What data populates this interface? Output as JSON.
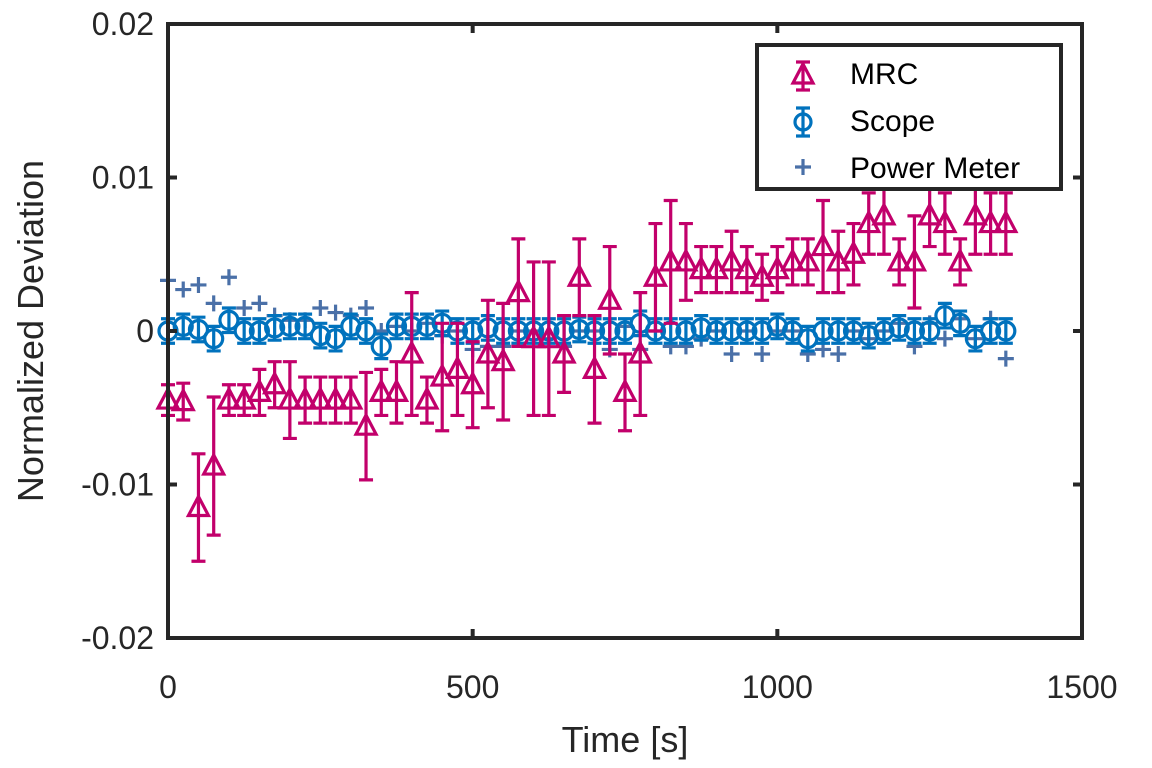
{
  "chart_data": {
    "type": "scatter",
    "title": "",
    "xlabel": "Time [s]",
    "ylabel": "Normalized Deviation",
    "xlim": [
      0,
      1500
    ],
    "ylim": [
      -0.02,
      0.02
    ],
    "xticks": [
      0,
      500,
      1000,
      1500
    ],
    "xtick_labels": [
      "0",
      "500",
      "1000",
      "1500"
    ],
    "yticks": [
      -0.02,
      -0.01,
      0,
      0.01,
      0.02
    ],
    "ytick_labels": [
      "-0.02",
      "-0.01",
      "0",
      "0.01",
      "0.02"
    ],
    "legend_position": "top-right",
    "grid": false,
    "series": [
      {
        "name": "MRC",
        "marker": "triangle",
        "color": "#C2006B",
        "x": [
          0,
          25,
          50,
          75,
          100,
          125,
          150,
          175,
          200,
          225,
          250,
          275,
          300,
          325,
          350,
          375,
          400,
          425,
          450,
          475,
          500,
          525,
          550,
          575,
          600,
          625,
          650,
          675,
          700,
          725,
          750,
          775,
          800,
          825,
          850,
          875,
          900,
          925,
          950,
          975,
          1000,
          1025,
          1050,
          1075,
          1100,
          1125,
          1150,
          1175,
          1200,
          1225,
          1250,
          1275,
          1300,
          1325,
          1350,
          1375
        ],
        "y": [
          -0.0045,
          -0.0046,
          -0.0115,
          -0.0088,
          -0.0045,
          -0.0045,
          -0.004,
          -0.0035,
          -0.0045,
          -0.0045,
          -0.0045,
          -0.0045,
          -0.0045,
          -0.0062,
          -0.004,
          -0.004,
          -0.0015,
          -0.0045,
          -0.003,
          -0.0025,
          -0.0035,
          -0.0015,
          -0.002,
          0.0025,
          -0.0005,
          -0.0005,
          -0.0015,
          0.0035,
          -0.0025,
          0.002,
          -0.004,
          -0.0015,
          0.0035,
          0.0045,
          0.0045,
          0.004,
          0.004,
          0.0045,
          0.004,
          0.0035,
          0.004,
          0.0045,
          0.0045,
          0.0055,
          0.0045,
          0.005,
          0.007,
          0.0075,
          0.0045,
          0.0045,
          0.0075,
          0.007,
          0.0045,
          0.0075,
          0.007,
          0.007
        ],
        "err": [
          0.001,
          0.0012,
          0.0035,
          0.0045,
          0.001,
          0.001,
          0.0015,
          0.0015,
          0.0025,
          0.0015,
          0.0015,
          0.0015,
          0.0015,
          0.0035,
          0.0015,
          0.002,
          0.004,
          0.0015,
          0.0035,
          0.003,
          0.0028,
          0.0035,
          0.0038,
          0.0035,
          0.005,
          0.005,
          0.0025,
          0.0025,
          0.0035,
          0.0035,
          0.0025,
          0.004,
          0.0035,
          0.004,
          0.0025,
          0.0015,
          0.0015,
          0.002,
          0.0015,
          0.0015,
          0.0015,
          0.0015,
          0.0015,
          0.003,
          0.002,
          0.002,
          0.002,
          0.0025,
          0.0015,
          0.003,
          0.002,
          0.002,
          0.0015,
          0.0025,
          0.002,
          0.002
        ]
      },
      {
        "name": "Scope",
        "marker": "circle",
        "color": "#0072BD",
        "x": [
          0,
          25,
          50,
          75,
          100,
          125,
          150,
          175,
          200,
          225,
          250,
          275,
          300,
          325,
          350,
          375,
          400,
          425,
          450,
          475,
          500,
          525,
          550,
          575,
          600,
          625,
          650,
          675,
          700,
          725,
          750,
          775,
          800,
          825,
          850,
          875,
          900,
          925,
          950,
          975,
          1000,
          1025,
          1050,
          1075,
          1100,
          1125,
          1150,
          1175,
          1200,
          1225,
          1250,
          1275,
          1300,
          1325,
          1350,
          1375
        ],
        "y": [
          0.0,
          0.0003,
          0.0001,
          -0.0005,
          0.0007,
          0.0,
          0.0,
          0.0002,
          0.0003,
          0.0003,
          -0.0003,
          -0.0005,
          0.0003,
          0.0,
          -0.001,
          0.0003,
          0.0003,
          0.0003,
          0.0005,
          0.0,
          0.0,
          0.0002,
          0.0,
          0.0,
          0.0,
          0.0,
          0.0,
          0.0001,
          0.0,
          0.0,
          0.0,
          0.0005,
          0.0,
          0.0,
          0.0,
          0.0002,
          0.0,
          0.0,
          0.0,
          0.0,
          0.0003,
          0.0,
          -0.0005,
          0.0,
          0.0,
          0.0,
          -0.0003,
          0.0,
          0.0002,
          0.0,
          0.0,
          0.001,
          0.0005,
          -0.0005,
          0.0,
          0.0
        ],
        "err": [
          0.0008,
          0.0008,
          0.0008,
          0.0008,
          0.0008,
          0.0008,
          0.0008,
          0.0008,
          0.0008,
          0.0008,
          0.0008,
          0.0008,
          0.0008,
          0.0008,
          0.0008,
          0.0008,
          0.0008,
          0.0008,
          0.0008,
          0.0008,
          0.0008,
          0.0008,
          0.0008,
          0.0008,
          0.0008,
          0.0008,
          0.0008,
          0.0008,
          0.0008,
          0.0008,
          0.0008,
          0.0008,
          0.0008,
          0.0008,
          0.0008,
          0.0008,
          0.0008,
          0.0008,
          0.0008,
          0.0008,
          0.0008,
          0.0008,
          0.0008,
          0.0008,
          0.0008,
          0.0008,
          0.0008,
          0.0008,
          0.0008,
          0.0008,
          0.0008,
          0.0008,
          0.0008,
          0.0008,
          0.0008,
          0.0008
        ]
      },
      {
        "name": "Power Meter",
        "marker": "plus",
        "color": "#4A70A8",
        "x": [
          0,
          25,
          50,
          75,
          100,
          125,
          150,
          175,
          200,
          225,
          250,
          275,
          300,
          325,
          350,
          375,
          400,
          425,
          450,
          475,
          500,
          525,
          550,
          575,
          600,
          625,
          650,
          675,
          700,
          725,
          750,
          775,
          800,
          825,
          850,
          875,
          900,
          925,
          950,
          975,
          1000,
          1025,
          1050,
          1075,
          1100,
          1125,
          1150,
          1175,
          1200,
          1225,
          1250,
          1275,
          1300,
          1325,
          1350,
          1375
        ],
        "y": [
          0.0033,
          0.0027,
          0.003,
          0.0018,
          0.0035,
          0.0015,
          0.0018,
          0.001,
          0.0007,
          0.0007,
          0.0015,
          0.0012,
          0.001,
          0.0015,
          0.0,
          0.0003,
          0.0,
          0.0005,
          -0.0003,
          0.0,
          -0.0012,
          -0.001,
          -0.001,
          0.0,
          0.0,
          -0.0005,
          -0.001,
          0.0,
          0.0,
          -0.0012,
          0.0003,
          -0.0012,
          0.0,
          -0.001,
          -0.001,
          -0.0005,
          0.0,
          -0.0015,
          0.0,
          -0.0015,
          0.0,
          0.0,
          -0.0015,
          -0.0012,
          -0.0015,
          0.0,
          -0.0005,
          0.0,
          0.0005,
          -0.001,
          0.0005,
          -0.0005,
          0.0008,
          -0.0005,
          0.0008,
          -0.0018
        ]
      }
    ]
  }
}
